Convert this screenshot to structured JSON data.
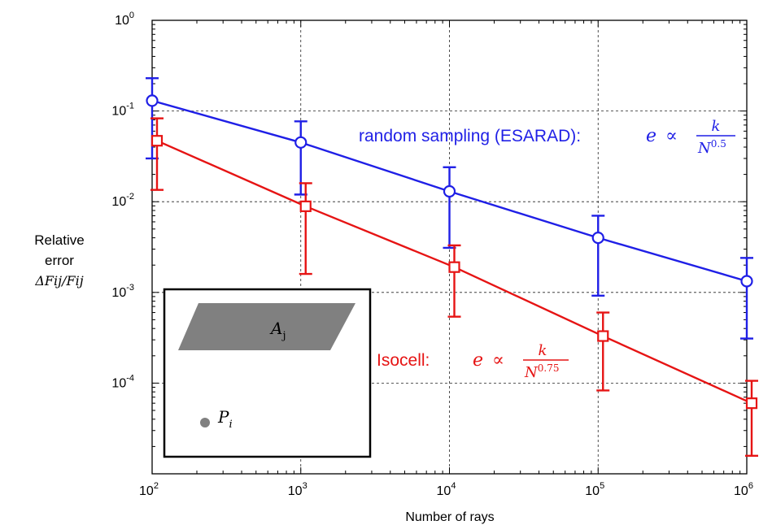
{
  "chart_data": {
    "type": "line",
    "xscale": "log",
    "yscale": "log",
    "x": [
      100,
      1000,
      10000,
      100000,
      1000000
    ],
    "xlim": [
      100,
      1000000
    ],
    "ylim": [
      1e-05,
      1
    ],
    "grid": true,
    "xlabel": "Number of rays",
    "ylabel": {
      "line1": "Relative",
      "line2": "error",
      "line3": "ΔFij/Fij"
    },
    "x_ticks": [
      {
        "base": "10",
        "exp": "2"
      },
      {
        "base": "10",
        "exp": "3"
      },
      {
        "base": "10",
        "exp": "4"
      },
      {
        "base": "10",
        "exp": "5"
      },
      {
        "base": "10",
        "exp": "6"
      }
    ],
    "y_ticks": [
      {
        "value": 1,
        "base": "10",
        "exp": "0"
      },
      {
        "value": 0.1,
        "base": "10",
        "exp": "-1"
      },
      {
        "value": 0.01,
        "base": "10",
        "exp": "-2"
      },
      {
        "value": 0.001,
        "base": "10",
        "exp": "-3"
      },
      {
        "value": 0.0001,
        "base": "10",
        "exp": "-4"
      }
    ],
    "series": [
      {
        "id": "random",
        "color": "#1f1fe6",
        "marker": "circle",
        "values": [
          0.13,
          0.045,
          0.013,
          0.004,
          0.00133
        ],
        "err_upper": [
          0.23,
          0.077,
          0.024,
          0.007,
          0.0024
        ],
        "err_lower": [
          0.03,
          0.012,
          0.0031,
          0.00092,
          0.00031
        ],
        "annotation": {
          "text": "random sampling (ESARAD): ",
          "e": "e",
          "propto": "∝",
          "num": "k",
          "den_base": "N",
          "den_exp": "0.5"
        }
      },
      {
        "id": "isocell",
        "color": "#e61414",
        "marker": "square",
        "x_offsets": [
          1.0,
          1.0,
          1.0,
          1.0,
          1.0
        ],
        "values": [
          0.047,
          0.0089,
          0.0019,
          0.00033,
          6e-05
        ],
        "err_upper": [
          0.083,
          0.016,
          0.0033,
          0.0006,
          0.000106
        ],
        "err_lower": [
          0.0135,
          0.0016,
          0.00054,
          8.3e-05,
          1.58e-05
        ],
        "annotation": {
          "text": "Isocell:",
          "e": "e",
          "propto": "∝",
          "num": "k",
          "den_base": "N",
          "den_exp": "0.75"
        }
      }
    ],
    "inset": {
      "shape_label_base": "A",
      "shape_label_sub": "j",
      "point_label_base": "P",
      "point_label_sub": "i"
    }
  }
}
